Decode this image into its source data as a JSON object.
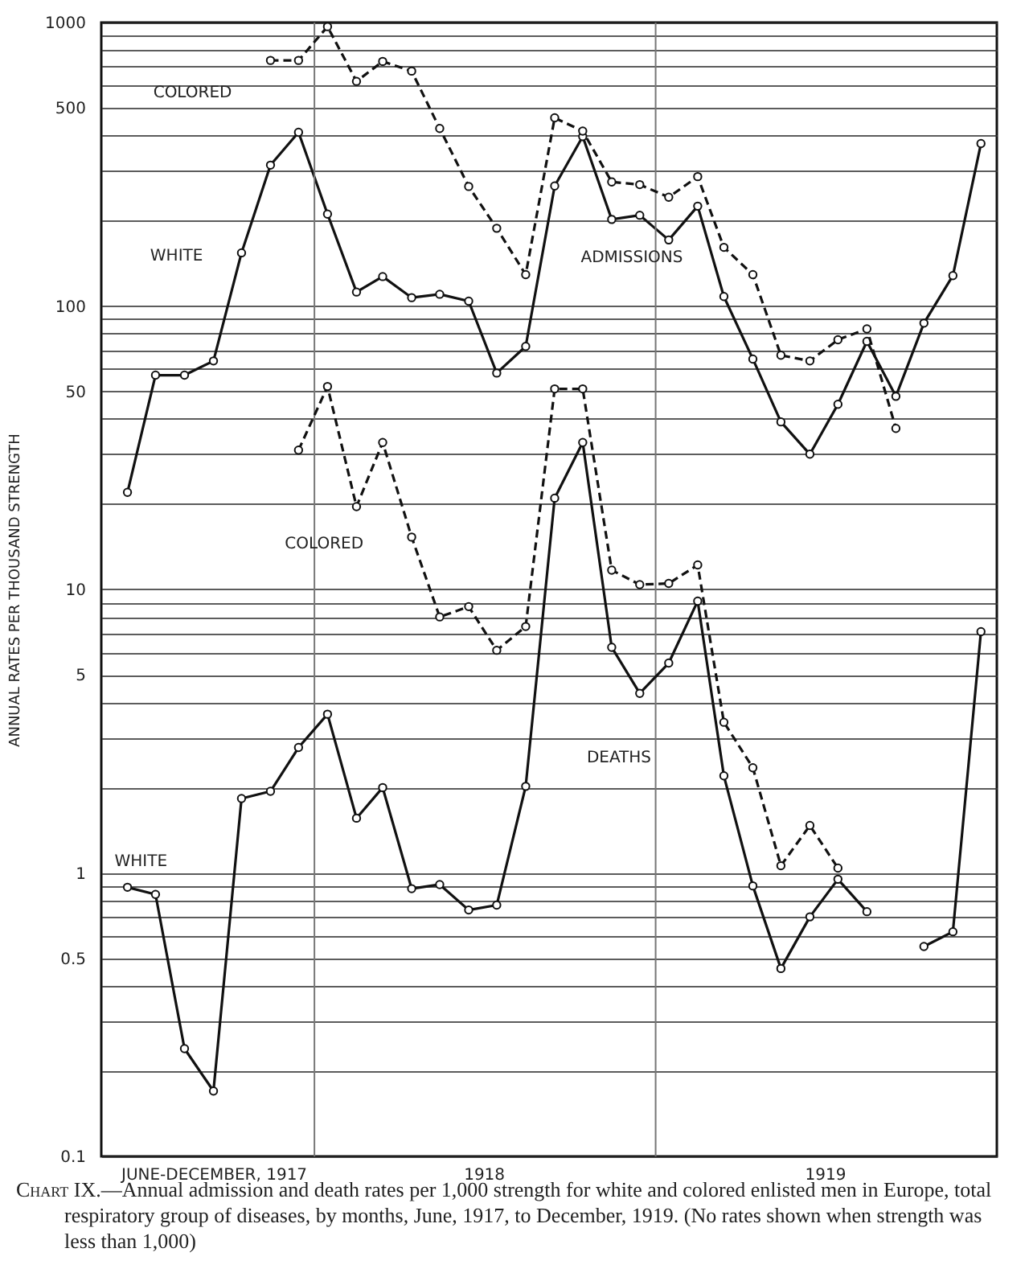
{
  "chart_data": {
    "type": "line",
    "ylabel": "ANNUAL RATES PER THOUSAND STRENGTH",
    "log": "y",
    "grid": "y",
    "marker": "circle",
    "x": [
      "1917-06-15",
      "1917-07-15",
      "1917-08-15",
      "1917-09-15",
      "1917-10-15",
      "1917-11-15",
      "1917-12-15",
      "1918-01-15",
      "1918-02-15",
      "1918-03-15",
      "1918-04-15",
      "1918-05-15",
      "1918-06-15",
      "1918-07-15",
      "1918-08-15",
      "1918-09-15",
      "1918-10-15",
      "1918-11-15",
      "1918-12-15",
      "1919-01-15",
      "1919-02-15",
      "1919-03-15",
      "1919-04-15",
      "1919-05-15",
      "1919-06-15",
      "1919-07-15",
      "1919-08-15",
      "1919-09-15",
      "1919-10-15",
      "1919-11-15",
      "1919-12-15"
    ],
    "xlim": [
      "1917-05-18",
      "1920-01-01"
    ],
    "xticks": [
      {
        "value": "1917-09-15",
        "label": "JUNE-DECEMBER, 1917"
      },
      {
        "value": "1918-07-01",
        "label": "1918"
      },
      {
        "value": "1919-07-01",
        "label": "1919"
      }
    ],
    "ylim": [
      0.1,
      1000
    ],
    "yticks": [
      0.1,
      {
        "value": 0.2,
        "label": null
      },
      {
        "value": 0.3,
        "label": null
      },
      {
        "value": 0.4,
        "label": null
      },
      0.5,
      {
        "value": 0.6,
        "label": null
      },
      {
        "value": 0.7,
        "label": null
      },
      {
        "value": 0.8,
        "label": null
      },
      {
        "value": 0.9,
        "label": null
      },
      1,
      {
        "value": 2,
        "label": null
      },
      {
        "value": 3,
        "label": null
      },
      {
        "value": 4,
        "label": null
      },
      5,
      {
        "value": 6,
        "label": null
      },
      {
        "value": 7,
        "label": null
      },
      {
        "value": 8,
        "label": null
      },
      {
        "value": 9,
        "label": null
      },
      10,
      {
        "value": 20,
        "label": null
      },
      {
        "value": 30,
        "label": null
      },
      {
        "value": 40,
        "label": null
      },
      50,
      {
        "value": 60,
        "label": null
      },
      {
        "value": 70,
        "label": null
      },
      {
        "value": 80,
        "label": null
      },
      {
        "value": 90,
        "label": null
      },
      100,
      {
        "value": 200,
        "label": null
      },
      {
        "value": 300,
        "label": null
      },
      {
        "value": 400,
        "label": null
      },
      500,
      {
        "value": 600,
        "label": null
      },
      {
        "value": 700,
        "label": null
      },
      {
        "value": 800,
        "label": null
      },
      {
        "value": 900,
        "label": null
      },
      1000
    ],
    "series": [
      {
        "name": "WHITE",
        "color": "#111111",
        "line_style": "solid",
        "values": [
          22,
          57,
          57,
          64,
          154,
          314,
          410,
          211,
          112,
          127,
          107,
          110,
          104,
          58,
          72,
          265,
          396,
          202,
          209,
          171,
          225,
          108,
          65,
          39,
          30,
          45,
          75,
          48,
          87,
          128,
          374
        ]
      },
      {
        "name": "COLORED",
        "color": "#111111",
        "line_style": "dashed",
        "values": [
          null,
          null,
          null,
          null,
          null,
          735,
          735,
          967,
          620,
          729,
          674,
          423,
          264,
          188,
          129,
          461,
          414,
          274,
          268,
          242,
          286,
          161,
          129,
          67,
          64,
          76,
          83,
          37,
          null,
          null,
          null
        ]
      },
      {
        "name": "WHITE",
        "color": "#111111",
        "line_style": "solid",
        "values": [
          0.89,
          0.84,
          0.24,
          0.17,
          1.83,
          1.94,
          2.77,
          3.63,
          1.56,
          2.0,
          0.88,
          0.91,
          0.74,
          0.77,
          2.02,
          21,
          33,
          6.25,
          4.3,
          5.5,
          9.1,
          2.2,
          0.9,
          0.46,
          0.7,
          0.95,
          0.73,
          null,
          0.55,
          0.62,
          7.1
        ]
      },
      {
        "name": "COLORED",
        "color": "#111111",
        "line_style": "dashed",
        "values": [
          null,
          null,
          null,
          null,
          null,
          null,
          31,
          52,
          19.6,
          33,
          15.3,
          8.0,
          8.7,
          6.1,
          7.4,
          51,
          51,
          11.7,
          10.4,
          10.5,
          12.2,
          3.4,
          2.35,
          1.06,
          1.47,
          1.04,
          null,
          null,
          null,
          null,
          null
        ]
      }
    ],
    "ref_lines": [
      {
        "axis": "x",
        "value": "1918-01-01",
        "color": "#777777"
      },
      {
        "axis": "x",
        "value": "1919-01-01",
        "color": "#777777"
      }
    ],
    "annotations": [
      "ADMISSIONS",
      "DEATHS",
      "Chart IX.—Annual admission and death rates per 1,000 strength for white and colored enlisted men in Europe, total respiratory group of diseases, by months, June, 1917, to December, 1919. (No rates shown when strength was less than 1,000)"
    ]
  }
}
